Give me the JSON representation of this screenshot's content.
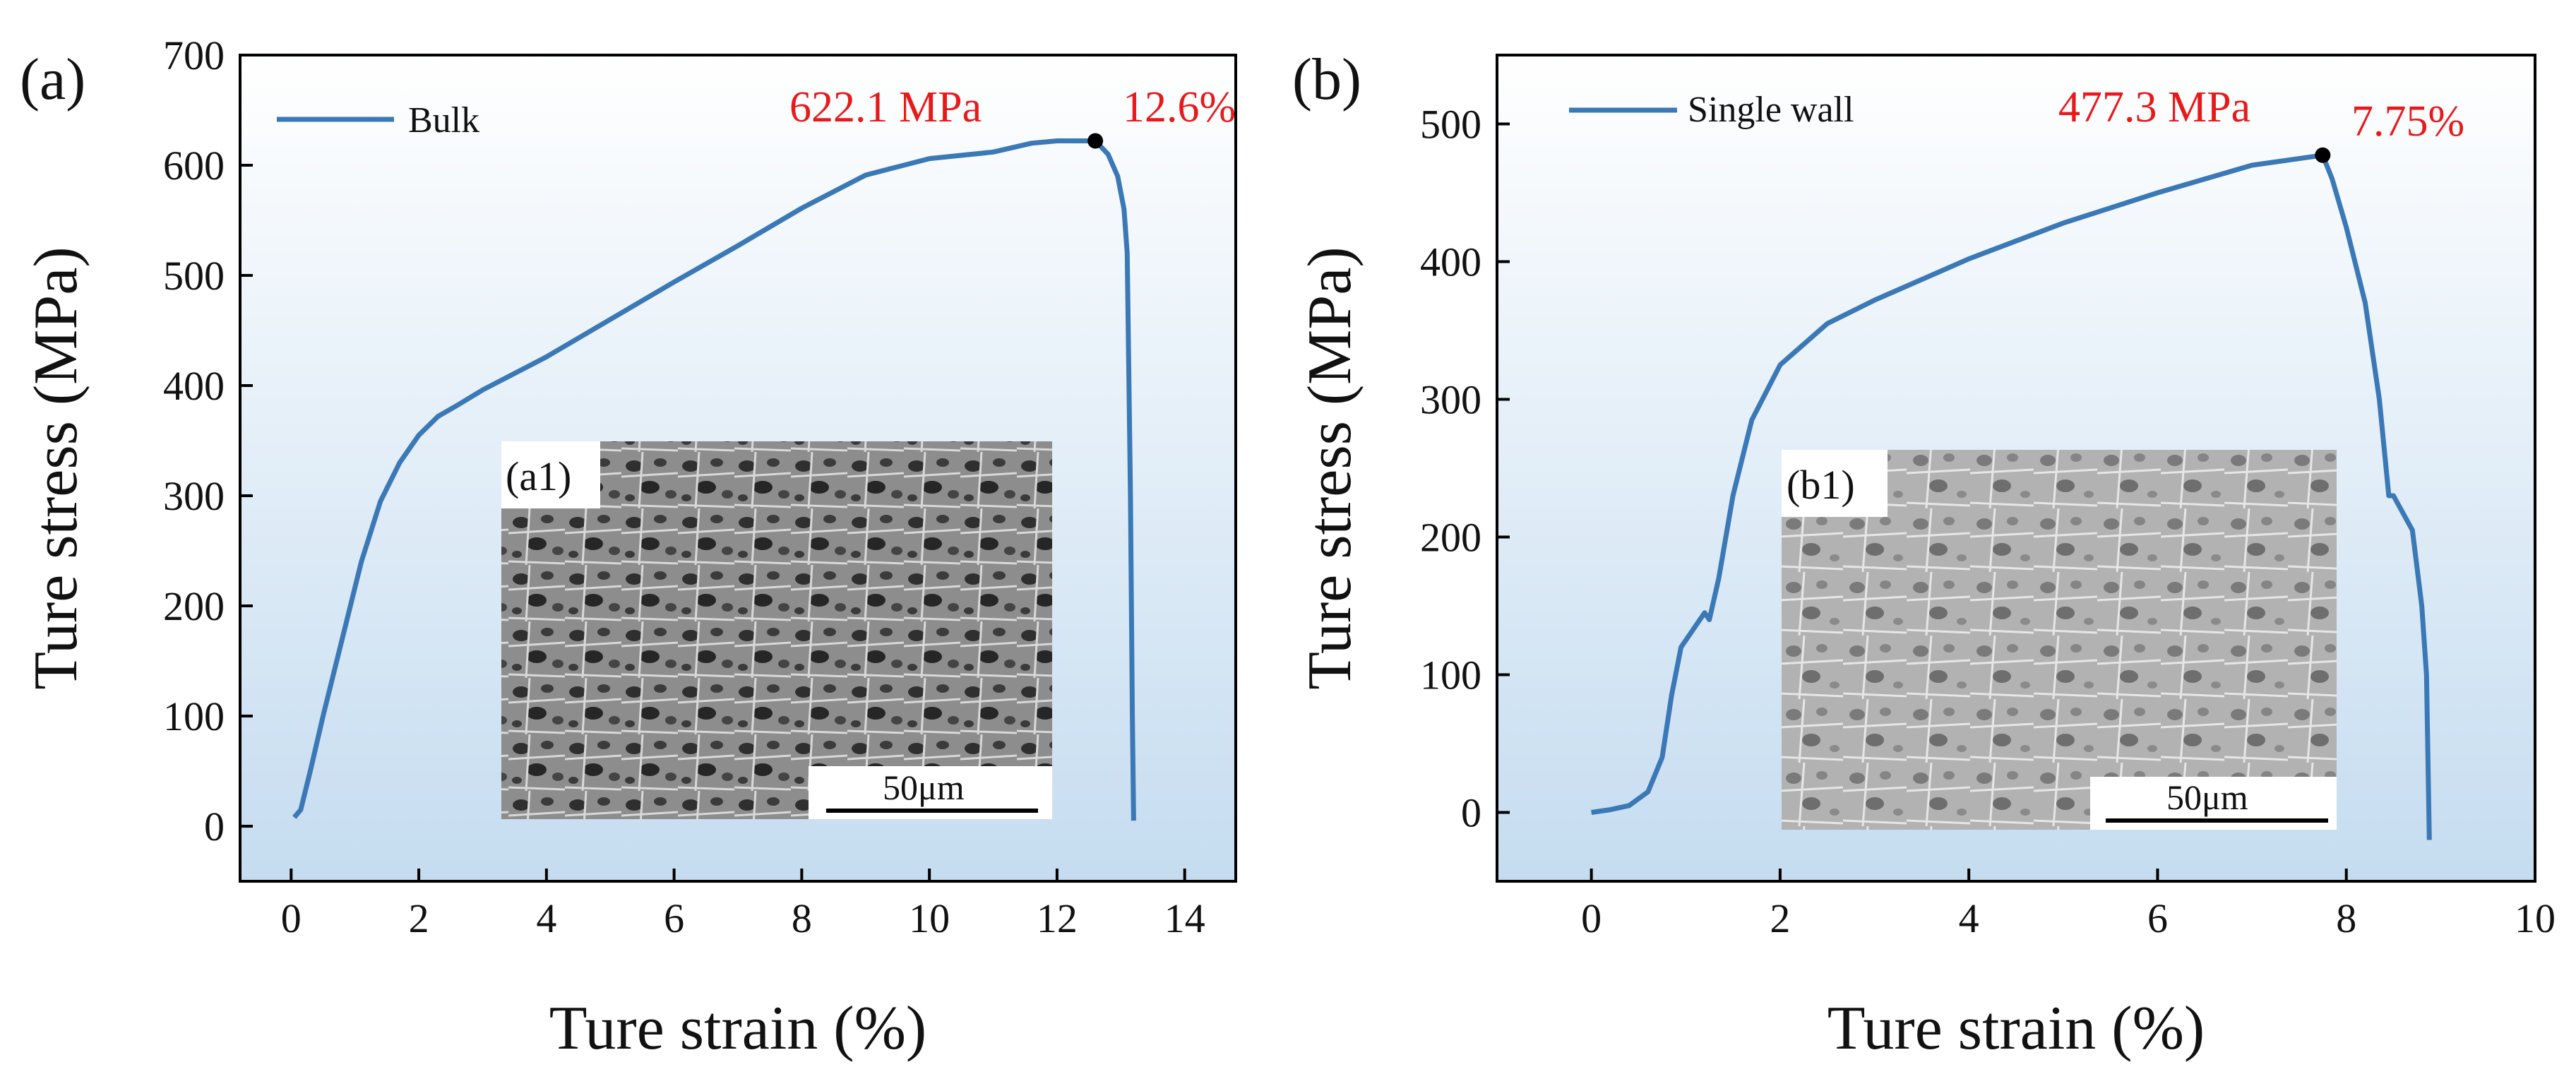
{
  "chart_data": [
    {
      "type": "line",
      "panel_label": "(a)",
      "xlabel": "Ture strain (%)",
      "ylabel": "Ture stress (MPa)",
      "xlim": [
        -0.8,
        14.8
      ],
      "ylim": [
        -50,
        700
      ],
      "xticks": [
        0,
        2,
        4,
        6,
        8,
        10,
        12,
        14
      ],
      "yticks": [
        0,
        100,
        200,
        300,
        400,
        500,
        600,
        700
      ],
      "grid": false,
      "legend": "top-left",
      "background": "gradient",
      "series": [
        {
          "name": "Bulk",
          "color": "#3a78b6",
          "x": [
            0.05,
            0.15,
            0.3,
            0.5,
            0.8,
            1.1,
            1.4,
            1.7,
            2.0,
            2.3,
            2.6,
            3.0,
            4.0,
            5.0,
            6.0,
            7.0,
            8.0,
            9.0,
            10.0,
            11.0,
            11.6,
            12.0,
            12.3,
            12.6,
            12.8,
            12.95,
            13.05,
            13.1,
            13.15,
            13.18,
            13.2
          ],
          "y": [
            8,
            15,
            50,
            100,
            170,
            240,
            295,
            330,
            355,
            372,
            382,
            396,
            426,
            460,
            494,
            527,
            561,
            591,
            606,
            612,
            620,
            622.1,
            622.1,
            622.1,
            610,
            590,
            560,
            520,
            300,
            100,
            5
          ]
        }
      ],
      "peak": {
        "x": 12.6,
        "y": 622.1,
        "stress_label": "622.1 MPa",
        "strain_label": "12.6%"
      },
      "inset": {
        "label": "(a1)",
        "scale_bar": "50μm"
      }
    },
    {
      "type": "line",
      "panel_label": "(b)",
      "xlabel": "Ture strain (%)",
      "ylabel": "Ture stress (MPa)",
      "xlim": [
        -1.0,
        10.0
      ],
      "ylim": [
        -50,
        550
      ],
      "xticks": [
        0,
        2,
        4,
        6,
        8,
        10
      ],
      "yticks": [
        0,
        100,
        200,
        300,
        400,
        500
      ],
      "grid": false,
      "legend": "top-left",
      "background": "gradient",
      "series": [
        {
          "name": "Single wall",
          "color": "#3a78b6",
          "x": [
            0.0,
            0.2,
            0.4,
            0.6,
            0.75,
            0.85,
            0.95,
            1.05,
            1.15,
            1.2,
            1.25,
            1.35,
            1.5,
            1.7,
            2.0,
            2.5,
            3.0,
            4.0,
            5.0,
            6.0,
            7.0,
            7.75,
            7.85,
            8.0,
            8.2,
            8.35,
            8.45,
            8.5,
            8.7,
            8.8,
            8.85,
            8.88
          ],
          "y": [
            0,
            2,
            5,
            15,
            40,
            85,
            120,
            130,
            140,
            145,
            140,
            170,
            230,
            285,
            325,
            355,
            372,
            402,
            428,
            450,
            470,
            477.3,
            460,
            425,
            370,
            300,
            230,
            230,
            205,
            150,
            100,
            -20
          ]
        }
      ],
      "peak": {
        "x": 7.75,
        "y": 477.3,
        "stress_label": "477.3 MPa",
        "strain_label": "7.75%"
      },
      "inset": {
        "label": "(b1)",
        "scale_bar": "50μm"
      }
    }
  ]
}
